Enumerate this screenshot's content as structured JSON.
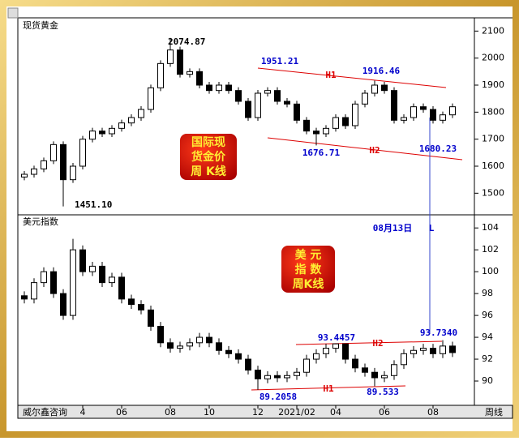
{
  "chart_data": [
    {
      "type": "candlestick",
      "title": "现货黄金",
      "open": [
        1560,
        1570,
        1590,
        1620,
        1680,
        1550,
        1600,
        1700,
        1730,
        1720,
        1740,
        1760,
        1780,
        1810,
        1890,
        1980,
        2030,
        1940,
        1950,
        1900,
        1880,
        1900,
        1880,
        1840,
        1780,
        1870,
        1880,
        1840,
        1830,
        1770,
        1730,
        1720,
        1740,
        1780,
        1750,
        1830,
        1870,
        1900,
        1880,
        1770,
        1780,
        1820,
        1810,
        1770,
        1790
      ],
      "high": [
        1582,
        1602,
        1632,
        1692,
        1692,
        1612,
        1712,
        1742,
        1742,
        1752,
        1772,
        1792,
        1822,
        1902,
        1992,
        2074.87,
        2042,
        1962,
        1962,
        1912,
        1912,
        1912,
        1892,
        1852,
        1882,
        1892,
        1892,
        1852,
        1842,
        1782,
        1742,
        1752,
        1792,
        1792,
        1842,
        1882,
        1916.46,
        1912,
        1892,
        1792,
        1832,
        1832,
        1822,
        1802,
        1832
      ],
      "low": [
        1548,
        1558,
        1578,
        1608,
        1451.1,
        1538,
        1588,
        1688,
        1708,
        1708,
        1728,
        1748,
        1768,
        1798,
        1878,
        1968,
        1928,
        1928,
        1888,
        1868,
        1868,
        1868,
        1828,
        1768,
        1768,
        1858,
        1828,
        1818,
        1758,
        1718,
        1676.71,
        1708,
        1728,
        1738,
        1738,
        1818,
        1858,
        1868,
        1758,
        1758,
        1768,
        1798,
        1758,
        1758,
        1778
      ],
      "close": [
        1570,
        1590,
        1620,
        1680,
        1550,
        1600,
        1700,
        1730,
        1720,
        1740,
        1760,
        1780,
        1810,
        1890,
        1980,
        2030,
        1940,
        1950,
        1900,
        1880,
        1900,
        1880,
        1840,
        1780,
        1870,
        1880,
        1840,
        1830,
        1770,
        1730,
        1720,
        1740,
        1780,
        1750,
        1830,
        1870,
        1900,
        1880,
        1770,
        1780,
        1820,
        1810,
        1770,
        1790,
        1820
      ],
      "ylim": [
        1420,
        2140
      ],
      "yticks": [
        1500,
        1600,
        1700,
        1800,
        1900,
        2000,
        2100
      ],
      "annotations": [
        "2074.87",
        "1451.10",
        "1951.21",
        "1916.46",
        "1676.71",
        "1680.23",
        "H1",
        "H2",
        "08月13日",
        "L"
      ],
      "box_text": [
        "国际现",
        "货金价",
        "周 K线"
      ]
    },
    {
      "type": "candlestick",
      "title": "美元指数",
      "categories": [
        null,
        null,
        null,
        null,
        null,
        null,
        "4",
        null,
        null,
        null,
        "06",
        null,
        null,
        null,
        null,
        "08",
        null,
        null,
        null,
        "10",
        null,
        null,
        null,
        null,
        "12",
        null,
        null,
        null,
        "2021/02",
        null,
        null,
        null,
        "04",
        null,
        null,
        null,
        null,
        "06",
        null,
        null,
        null,
        null,
        "08",
        null,
        null
      ],
      "open": [
        97.8,
        97.5,
        99,
        100,
        98,
        96,
        102,
        100,
        100.5,
        99,
        99.5,
        97.5,
        97,
        96.5,
        95,
        93.5,
        93,
        93.2,
        93.5,
        94,
        93.5,
        92.8,
        92.5,
        92,
        91,
        90.2,
        90.5,
        90.3,
        90.5,
        90.8,
        92,
        92.5,
        93,
        93.4,
        92,
        91.2,
        90.8,
        90.3,
        90.5,
        91.5,
        92.5,
        92.8,
        93,
        92.5,
        93.2
      ],
      "high": [
        98.2,
        99.4,
        100.4,
        100.4,
        98.4,
        103,
        102.4,
        100.9,
        100.9,
        99.9,
        99.9,
        97.9,
        97.4,
        96.9,
        95.4,
        93.9,
        93.6,
        93.9,
        94.4,
        94.4,
        93.9,
        93.2,
        92.9,
        92.4,
        91.4,
        90.9,
        90.9,
        90.9,
        91.2,
        92.4,
        92.9,
        93.4,
        93.4457,
        93.4,
        92.4,
        91.6,
        91.2,
        90.9,
        91.9,
        92.9,
        93.2,
        93.4,
        93.4,
        93.734,
        93.6
      ],
      "low": [
        97.1,
        97.1,
        98.6,
        97.6,
        95.6,
        95.6,
        99.6,
        99.6,
        98.6,
        98.6,
        97.1,
        96.6,
        96.1,
        94.6,
        93.1,
        92.6,
        92.6,
        92.8,
        93.1,
        93.1,
        92.4,
        92.1,
        91.6,
        90.6,
        89.2058,
        89.8,
        89.9,
        89.9,
        90.1,
        90.4,
        91.6,
        92.1,
        92.6,
        91.6,
        90.8,
        90.4,
        89.533,
        89.9,
        90.1,
        91.1,
        92.1,
        92.4,
        92.1,
        92.1,
        92.2
      ],
      "close": [
        97.5,
        99,
        100,
        98,
        96,
        102,
        100,
        100.5,
        99,
        99.5,
        97.5,
        97,
        96.5,
        95,
        93.5,
        93,
        93.2,
        93.5,
        94,
        93.5,
        92.8,
        92.5,
        92,
        91,
        90.2,
        90.5,
        90.3,
        90.5,
        90.8,
        92,
        92.5,
        93,
        93.4,
        92,
        91.2,
        90.8,
        90.3,
        90.5,
        91.5,
        92.5,
        92.8,
        93,
        92.5,
        93.2,
        92.6
      ],
      "ylim": [
        88,
        105.2
      ],
      "yticks": [
        90,
        92,
        94,
        96,
        98,
        100,
        102,
        104
      ],
      "annotations": [
        "93.4457",
        "93.7340",
        "89.2058",
        "89.533",
        "H2",
        "H1"
      ],
      "box_text": [
        "美  元",
        "指  数",
        "周K线"
      ]
    }
  ],
  "footer": {
    "left": "威尔鑫咨询",
    "right": "周线"
  }
}
